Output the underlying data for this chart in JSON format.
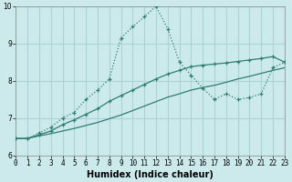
{
  "xlabel": "Humidex (Indice chaleur)",
  "background_color": "#cceaec",
  "grid_color": "#aad4d6",
  "line_color": "#2e7d72",
  "xlim": [
    0,
    23
  ],
  "ylim": [
    6,
    10.2
  ],
  "xticks": [
    0,
    1,
    2,
    3,
    4,
    5,
    6,
    7,
    8,
    9,
    10,
    11,
    12,
    13,
    14,
    15,
    16,
    17,
    18,
    19,
    20,
    21,
    22,
    23
  ],
  "yticks": [
    6,
    7,
    8,
    9,
    10
  ],
  "series": [
    {
      "x": [
        0,
        1,
        2,
        3,
        4,
        5,
        6,
        7,
        8,
        9,
        10,
        11,
        12,
        13,
        14,
        15,
        16,
        17,
        18,
        19,
        20,
        21,
        22,
        23
      ],
      "y": [
        6.45,
        6.45,
        6.6,
        6.75,
        7.0,
        7.15,
        7.5,
        7.75,
        8.05,
        9.15,
        9.45,
        9.72,
        10.0,
        9.4,
        8.5,
        8.15,
        7.8,
        7.5,
        7.65,
        7.5,
        7.55,
        7.65,
        8.35,
        8.5
      ],
      "linestyle": "dotted",
      "marker": "+"
    },
    {
      "x": [
        0,
        1,
        2,
        3,
        4,
        5,
        6,
        7,
        8,
        9,
        10,
        11,
        12,
        13,
        14,
        15,
        16,
        17,
        18,
        19,
        20,
        21,
        22,
        23
      ],
      "y": [
        6.45,
        6.45,
        6.52,
        6.58,
        6.65,
        6.72,
        6.8,
        6.88,
        6.98,
        7.08,
        7.2,
        7.32,
        7.44,
        7.56,
        7.65,
        7.75,
        7.82,
        7.88,
        7.96,
        8.05,
        8.12,
        8.2,
        8.28,
        8.35
      ],
      "linestyle": "solid",
      "marker": null
    },
    {
      "x": [
        0,
        1,
        2,
        3,
        4,
        5,
        6,
        7,
        8,
        9,
        10,
        11,
        12,
        13,
        14,
        15,
        16,
        17,
        18,
        19,
        20,
        21,
        22,
        23
      ],
      "y": [
        6.45,
        6.45,
        6.55,
        6.65,
        6.82,
        6.95,
        7.1,
        7.25,
        7.45,
        7.6,
        7.75,
        7.9,
        8.05,
        8.18,
        8.28,
        8.38,
        8.42,
        8.45,
        8.48,
        8.52,
        8.56,
        8.6,
        8.65,
        8.5
      ],
      "linestyle": "solid",
      "marker": "+"
    }
  ]
}
